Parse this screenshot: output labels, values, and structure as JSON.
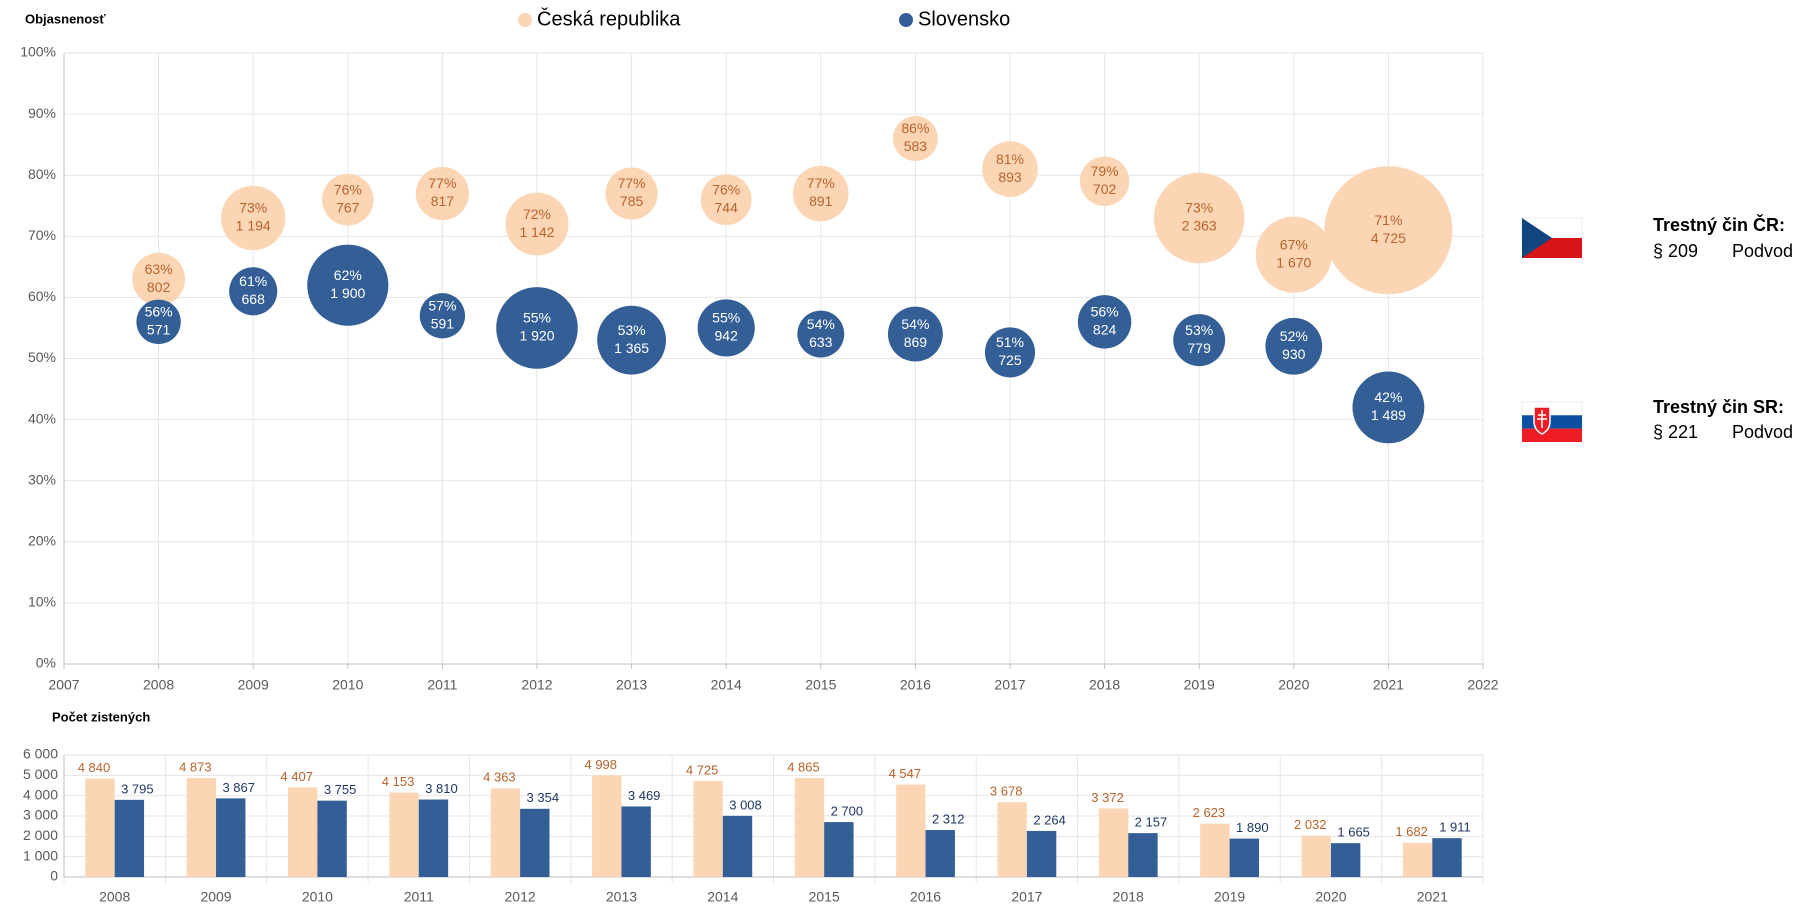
{
  "chart_data": [
    {
      "type": "bubble",
      "axis_title": "Objasnenosť",
      "x": [
        2008,
        2009,
        2010,
        2011,
        2012,
        2013,
        2014,
        2015,
        2016,
        2017,
        2018,
        2019,
        2020,
        2021
      ],
      "xlim": [
        2007,
        2022
      ],
      "xticks": [
        2007,
        2008,
        2009,
        2010,
        2011,
        2012,
        2013,
        2014,
        2015,
        2016,
        2017,
        2018,
        2019,
        2020,
        2021,
        2022
      ],
      "ylim": [
        0,
        100
      ],
      "yticks": [
        {
          "value": 0,
          "label": "0%"
        },
        {
          "value": 10,
          "label": "10%"
        },
        {
          "value": 20,
          "label": "20%"
        },
        {
          "value": 30,
          "label": "30%"
        },
        {
          "value": 40,
          "label": "40%"
        },
        {
          "value": 50,
          "label": "50%"
        },
        {
          "value": 60,
          "label": "60%"
        },
        {
          "value": 70,
          "label": "70%"
        },
        {
          "value": 80,
          "label": "80%"
        },
        {
          "value": 90,
          "label": "90%"
        },
        {
          "value": 100,
          "label": "100%"
        }
      ],
      "grid": true,
      "series": [
        {
          "name": "Česká republika",
          "color": "#fcd5b5",
          "label_color": "#b8632a",
          "values": [
            63,
            73,
            76,
            77,
            72,
            77,
            76,
            77,
            86,
            81,
            79,
            73,
            67,
            71
          ],
          "value_labels": [
            "63%",
            "73%",
            "76%",
            "77%",
            "72%",
            "77%",
            "76%",
            "77%",
            "86%",
            "81%",
            "79%",
            "73%",
            "67%",
            "71%"
          ],
          "sizes": [
            802,
            1194,
            767,
            817,
            1142,
            785,
            744,
            891,
            583,
            893,
            702,
            2363,
            1670,
            4725
          ],
          "size_labels": [
            "802",
            "1 194",
            "767",
            "817",
            "1 142",
            "785",
            "744",
            "891",
            "583",
            "893",
            "702",
            "2 363",
            "1 670",
            "4 725"
          ]
        },
        {
          "name": "Slovensko",
          "color": "#335f96",
          "label_color": "#ffffff",
          "values": [
            56,
            61,
            62,
            57,
            55,
            53,
            55,
            54,
            54,
            51,
            56,
            53,
            52,
            42
          ],
          "value_labels": [
            "56%",
            "61%",
            "62%",
            "57%",
            "55%",
            "53%",
            "55%",
            "54%",
            "54%",
            "51%",
            "56%",
            "53%",
            "52%",
            "42%"
          ],
          "sizes": [
            571,
            668,
            1900,
            591,
            1920,
            1365,
            942,
            633,
            869,
            725,
            824,
            779,
            930,
            1489
          ],
          "size_labels": [
            "571",
            "668",
            "1 900",
            "591",
            "1 920",
            "1 365",
            "942",
            "633",
            "869",
            "725",
            "824",
            "779",
            "930",
            "1 489"
          ]
        }
      ]
    },
    {
      "type": "bar",
      "axis_title": "Počet zistených",
      "categories": [
        "2008",
        "2009",
        "2010",
        "2011",
        "2012",
        "2013",
        "2014",
        "2015",
        "2016",
        "2017",
        "2018",
        "2019",
        "2020",
        "2021"
      ],
      "ylim": [
        0,
        6000
      ],
      "yticks": [
        0,
        {
          "value": 1000,
          "label": "1 000"
        },
        {
          "value": 2000,
          "label": "2 000"
        },
        {
          "value": 3000,
          "label": "3 000"
        },
        {
          "value": 4000,
          "label": "4 000"
        },
        {
          "value": 5000,
          "label": "5 000"
        },
        {
          "value": 6000,
          "label": "6 000"
        }
      ],
      "grid": true,
      "series": [
        {
          "color": "#fcd5b5",
          "label_color": "#b8632a",
          "values": [
            4840,
            4873,
            4407,
            4153,
            4363,
            4998,
            4725,
            4865,
            4547,
            3678,
            3372,
            2623,
            2032,
            1682
          ],
          "value_labels": [
            "4 840",
            "4 873",
            "4 407",
            "4 153",
            "4 363",
            "4 998",
            "4 725",
            "4 865",
            "4 547",
            "3 678",
            "3 372",
            "2 623",
            "2 032",
            "1 682"
          ]
        },
        {
          "color": "#335f96",
          "label_color": "#1f3864",
          "values": [
            3795,
            3867,
            3755,
            3810,
            3354,
            3469,
            3008,
            2700,
            2312,
            2264,
            2157,
            1890,
            1665,
            1911
          ],
          "value_labels": [
            "3 795",
            "3 867",
            "3 755",
            "3 810",
            "3 354",
            "3 469",
            "3 008",
            "2 700",
            "2 312",
            "2 264",
            "2 157",
            "1 890",
            "1 665",
            "1 911"
          ]
        }
      ]
    }
  ],
  "panels": [
    {
      "title": "Trestný čin ČR:",
      "section": "§ 209",
      "offence": "Podvod"
    },
    {
      "title": "Trestný čin SR:",
      "section": "§ 221",
      "offence": "Podvod"
    }
  ]
}
